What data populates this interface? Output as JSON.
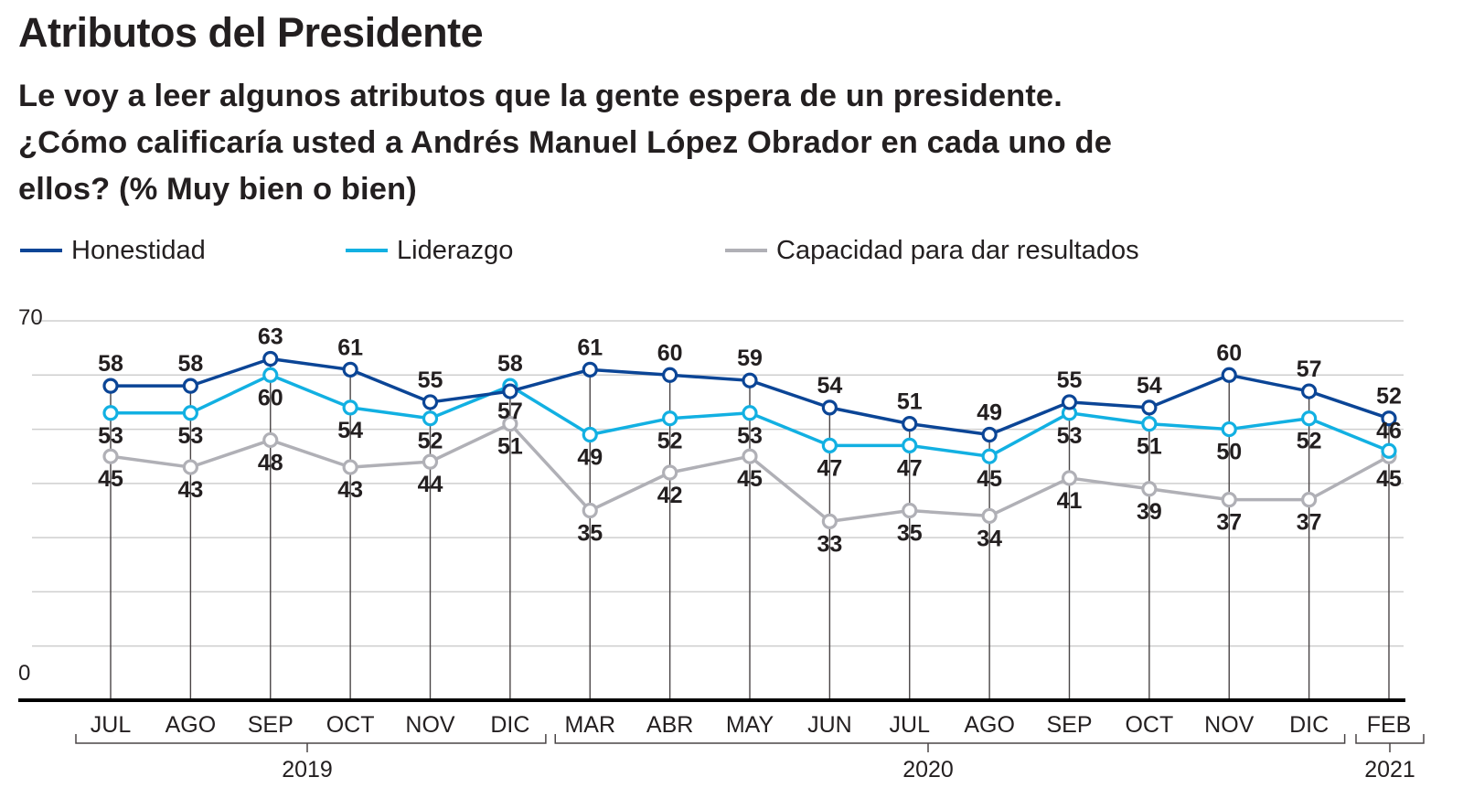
{
  "header": {
    "title": "Atributos del Presidente",
    "subtitle_lines": [
      "Le voy a leer algunos atributos que la gente espera de un presidente.",
      "¿Cómo calificaría usted a Andrés Manuel López Obrador en cada uno de",
      "ellos? (% Muy bien o bien)"
    ]
  },
  "legend": [
    {
      "name": "Honestidad",
      "color": "#0b4596"
    },
    {
      "name": "Liderazgo",
      "color": "#12b0e2"
    },
    {
      "name": "Capacidad para dar resultados",
      "color": "#b0b0b6"
    }
  ],
  "chart_data": {
    "type": "line",
    "title": "Atributos del Presidente",
    "subtitle": "Le voy a leer algunos atributos que la gente espera de un presidente. ¿Cómo calificaría usted a Andrés Manuel López Obrador en cada uno de ellos? (% Muy bien o bien)",
    "xlabel": "",
    "ylabel": "",
    "ylim": [
      0,
      70
    ],
    "yticks_labeled": [
      "70",
      "0"
    ],
    "grid_step": 10,
    "grid": true,
    "legend_position": "top-left",
    "categories": [
      "JUL",
      "AGO",
      "SEP",
      "OCT",
      "NOV",
      "DIC",
      "MAR",
      "ABR",
      "MAY",
      "JUN",
      "JUL",
      "AGO",
      "SEP",
      "OCT",
      "NOV",
      "DIC",
      "FEB"
    ],
    "year_groups": [
      {
        "label": "2019",
        "from": 0,
        "to": 5
      },
      {
        "label": "2020",
        "from": 6,
        "to": 15
      },
      {
        "label": "2021",
        "from": 16,
        "to": 16
      }
    ],
    "series": [
      {
        "name": "Honestidad",
        "color": "#0b4596",
        "values": [
          58,
          58,
          63,
          61,
          55,
          57,
          61,
          60,
          59,
          54,
          51,
          49,
          55,
          54,
          60,
          57,
          52
        ]
      },
      {
        "name": "Liderazgo",
        "color": "#12b0e2",
        "values": [
          53,
          53,
          60,
          54,
          52,
          58,
          49,
          52,
          53,
          47,
          47,
          45,
          53,
          51,
          50,
          52,
          46
        ]
      },
      {
        "name": "Capacidad para dar resultados",
        "color": "#b0b0b6",
        "values": [
          45,
          43,
          48,
          43,
          44,
          51,
          35,
          42,
          45,
          33,
          35,
          34,
          41,
          39,
          37,
          37,
          45
        ]
      }
    ]
  }
}
